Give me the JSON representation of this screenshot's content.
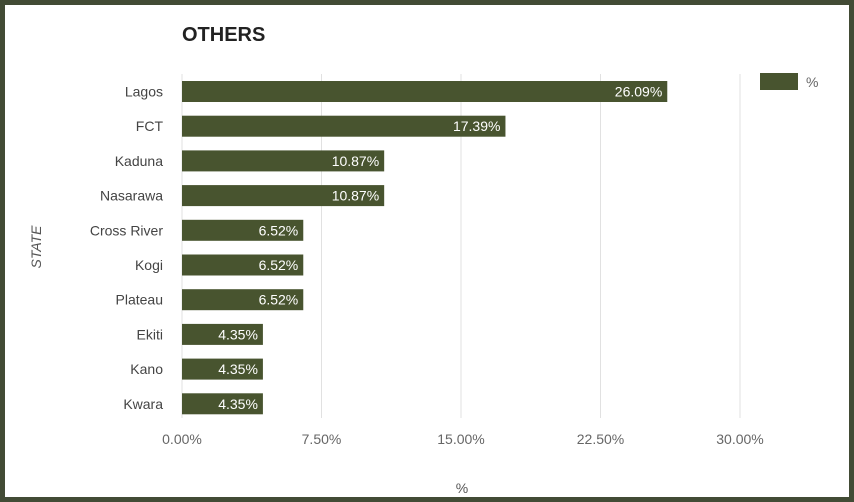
{
  "chart_data": {
    "type": "bar",
    "orientation": "horizontal",
    "title": "OTHERS",
    "xlabel": "%",
    "ylabel": "STATE",
    "categories": [
      "Lagos",
      "FCT",
      "Kaduna",
      "Nasarawa",
      "Cross River",
      "Kogi",
      "Plateau",
      "Ekiti",
      "Kano",
      "Kwara"
    ],
    "series": [
      {
        "name": "%",
        "values": [
          26.09,
          17.39,
          10.87,
          10.87,
          6.52,
          6.52,
          6.52,
          4.35,
          4.35,
          4.35
        ],
        "labels": [
          "26.09%",
          "17.39%",
          "10.87%",
          "10.87%",
          "6.52%",
          "6.52%",
          "6.52%",
          "4.35%",
          "4.35%",
          "4.35%"
        ]
      }
    ],
    "xlim": [
      0,
      30
    ],
    "xticks": [
      0,
      7.5,
      15,
      22.5,
      30
    ],
    "xtick_labels": [
      "0.00%",
      "7.50%",
      "15.00%",
      "22.50%",
      "30.00%"
    ],
    "grid": "vertical",
    "legend_position": "top-right",
    "colors": {
      "bar": "#48542f",
      "frame": "#424b35",
      "grid": "#e1e1e1"
    }
  }
}
